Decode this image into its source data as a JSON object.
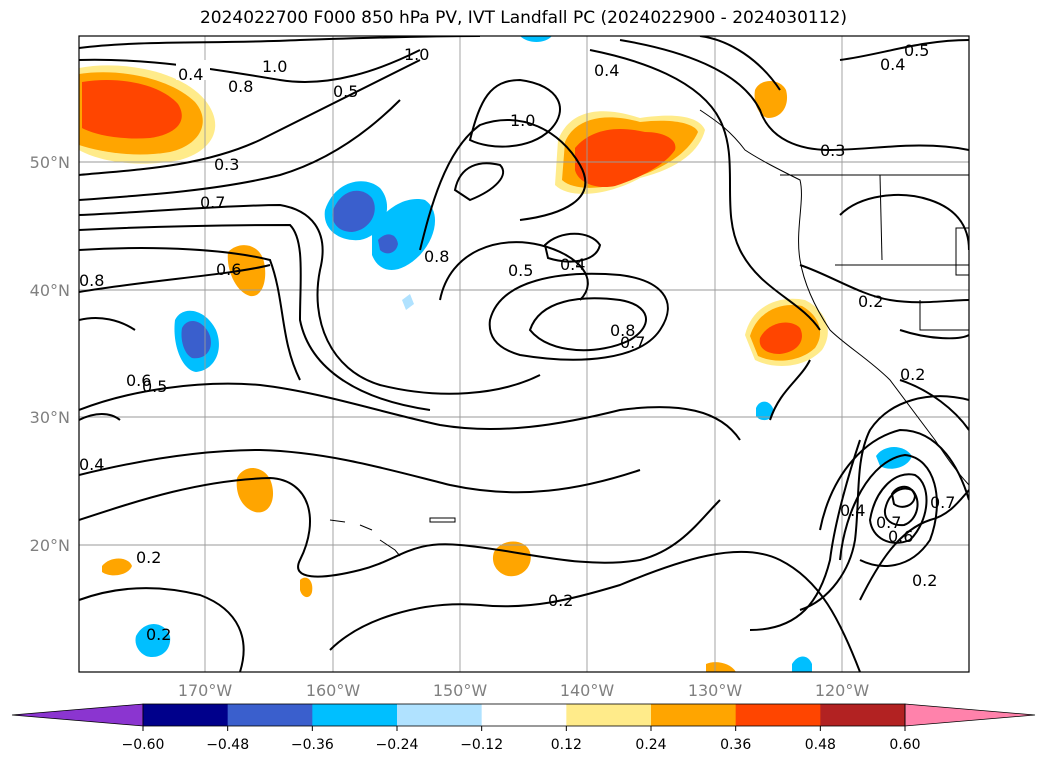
{
  "title": "2024022700 F000 850 hPa PV, IVT Landfall PC (2024022900 - 2024030112)",
  "map": {
    "lat_labels": [
      "50°N",
      "40°N",
      "30°N",
      "20°N"
    ],
    "lon_labels": [
      "170°W",
      "160°W",
      "150°W",
      "140°W",
      "130°W",
      "120°W"
    ],
    "contour_labels": [
      "1.0",
      "0.4",
      "0.8",
      "0.5",
      "0.3",
      "0.7",
      "0.6",
      "0.8",
      "0.6",
      "0.5",
      "0.4",
      "0.2",
      "0.2",
      "1.0",
      "1.0",
      "0.8",
      "0.5",
      "0.4",
      "0.8",
      "0.7",
      "0.2",
      "0.4",
      "0.5",
      "0.4",
      "0.3",
      "0.2",
      "0.4",
      "0.7",
      "0.6",
      "0.2",
      "0.2",
      "0.7"
    ]
  },
  "colorbar": {
    "ticks": [
      "−0.60",
      "−0.48",
      "−0.36",
      "−0.24",
      "−0.12",
      "0.12",
      "0.24",
      "0.36",
      "0.48",
      "0.60"
    ],
    "colors": [
      "#8b35d0",
      "#00008b",
      "#3a5fcd",
      "#00bfff",
      "#b0e2ff",
      "#ffffff",
      "#ffeb8a",
      "#ffa500",
      "#ff4500",
      "#b22222",
      "#ff82ab"
    ]
  }
}
